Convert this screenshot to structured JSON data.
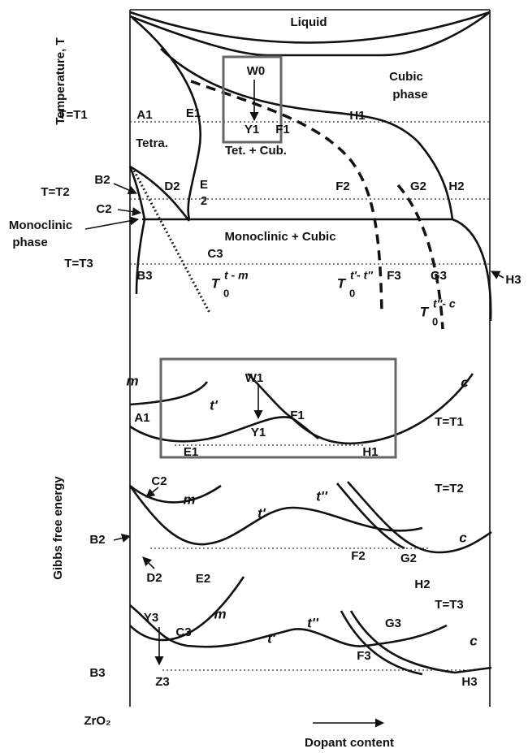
{
  "top_diagram": {
    "y_axis_label": "Temperature, T",
    "regions": [
      "Liquid",
      "Cubic",
      "phase",
      "Tetra.",
      "Tet. + Cub.",
      "Monoclinic",
      "phase",
      "Monoclinic + Cubic"
    ],
    "temperatures": [
      "T=T1",
      "T=T2",
      "T=T3"
    ],
    "points": [
      "W0",
      "Y1",
      "F1",
      "A1",
      "E1",
      "H1",
      "B2",
      "C2",
      "D2",
      "E",
      "2",
      "F2",
      "G2",
      "H2",
      "C3",
      "B3",
      "F3",
      "G3",
      "H3"
    ],
    "boundaries": [
      {
        "main": "T",
        "sub": "0",
        "sup": "t - m"
      },
      {
        "main": "T",
        "sub": "0",
        "sup": "t'- t''"
      },
      {
        "main": "T",
        "sub": "0",
        "sup": "t''- c"
      }
    ]
  },
  "bottom_diagram": {
    "y_axis_label": "Gibbs free energy",
    "panels": [
      {
        "temperature": "T=T1",
        "labels": [
          "m",
          "t'",
          "W1",
          "c",
          "A1",
          "F1",
          "Y1",
          "E1",
          "H1"
        ]
      },
      {
        "temperature": "T=T2",
        "labels": [
          "C2",
          "m",
          "t'",
          "t''",
          "B2",
          "c",
          "F2",
          "G2",
          "D2",
          "E2",
          "H2"
        ]
      },
      {
        "temperature": "T=T3",
        "labels": [
          "m",
          "t''",
          "t'",
          "Y3",
          "C3",
          "G3",
          "c",
          "F3",
          "B3",
          "Z3",
          "H3"
        ]
      }
    ]
  },
  "x_axis": {
    "origin": "ZrO₂",
    "label": "Dopant content"
  }
}
